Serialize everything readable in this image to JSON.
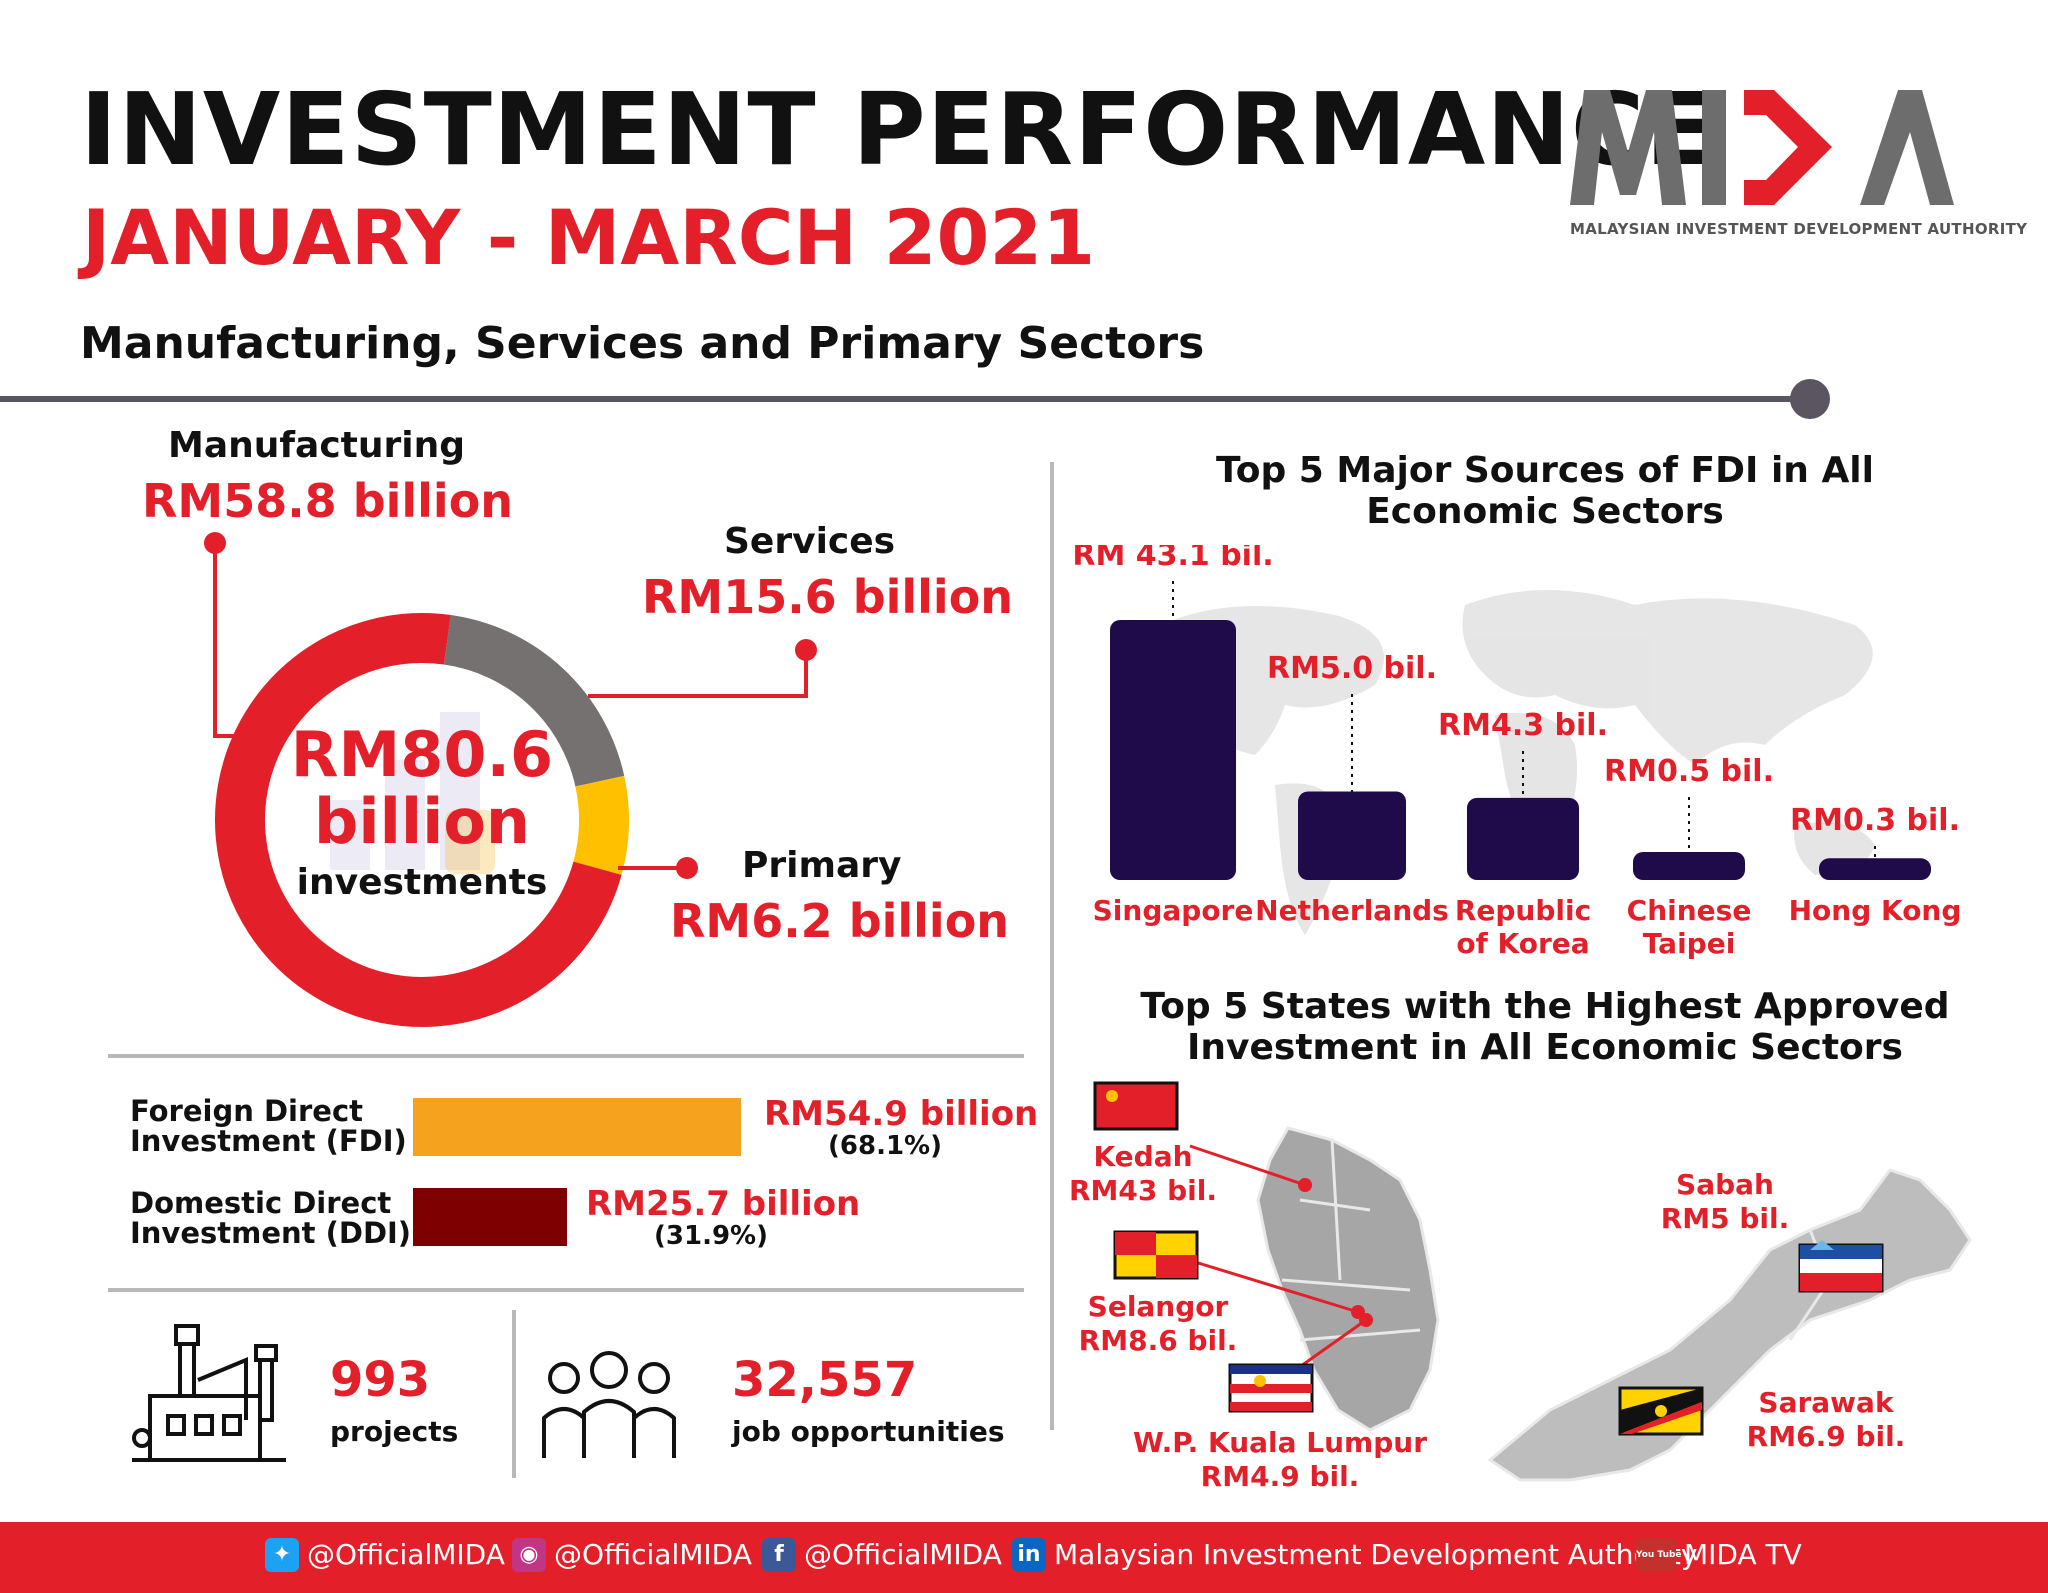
{
  "header": {
    "title": "INVESTMENT PERFORMANCE",
    "period": "JANUARY - MARCH 2021",
    "subtitle": "Manufacturing, Services and Primary Sectors"
  },
  "logo": {
    "subtitle": "MALAYSIAN INVESTMENT DEVELOPMENT AUTHORITY"
  },
  "colors": {
    "red": "#e3202a",
    "grey": "#767171",
    "yellow": "#ffc000",
    "navy": "#1f0a4a",
    "fdi_orange": "#f5a21e",
    "ddi_maroon": "#7f0000"
  },
  "total": {
    "value": "RM80.6 billion",
    "label": "investments"
  },
  "sectors": {
    "manufacturing": {
      "name": "Manufacturing",
      "value": "RM58.8 billion"
    },
    "services": {
      "name": "Services",
      "value": "RM15.6 billion"
    },
    "primary": {
      "name": "Primary",
      "value": "RM6.2 billion"
    }
  },
  "fdi_ddi": {
    "fdi": {
      "label_line1": "Foreign Direct",
      "label_line2": "Investment (FDI)",
      "value": "RM54.9 billion",
      "pct": "(68.1%)"
    },
    "ddi": {
      "label_line1": "Domestic Direct",
      "label_line2": "Investment (DDI)",
      "value": "RM25.7 billion",
      "pct": "(31.9%)"
    }
  },
  "stats": {
    "projects": {
      "value": "993",
      "label": "projects"
    },
    "jobs": {
      "value": "32,557",
      "label": "job opportunities"
    }
  },
  "fdi_sources": {
    "title_line1": "Top 5 Major Sources of FDI in All",
    "title_line2": "Economic Sectors",
    "labels": [
      "RM 43.1 bil.",
      "RM5.0 bil.",
      "RM4.3 bil.",
      "RM0.5 bil.",
      "RM0.3 bil."
    ],
    "categories": [
      "Singapore",
      "Netherlands",
      "Republic of Korea",
      "Chinese Taipei",
      "Hong Kong"
    ]
  },
  "states": {
    "title_line1": "Top 5 States with the Highest Approved",
    "title_line2": "Investment in All Economic Sectors",
    "items": [
      {
        "name": "Kedah",
        "value": "RM43 bil."
      },
      {
        "name": "Selangor",
        "value": "RM8.6 bil."
      },
      {
        "name": "W.P. Kuala Lumpur",
        "value": "RM4.9 bil."
      },
      {
        "name": "Sabah",
        "value": "RM5 bil."
      },
      {
        "name": "Sarawak",
        "value": "RM6.9 bil."
      }
    ]
  },
  "footer": {
    "twitter": "@OfficialMIDA",
    "instagram": "@OfficialMIDA",
    "facebook": "@OfficialMIDA",
    "linkedin": "Malaysian Investment Development Authority",
    "youtube": "MIDA TV",
    "youtube_icon_text": "You Tube"
  },
  "chart_data": [
    {
      "type": "pie",
      "categories": [
        "Manufacturing",
        "Services",
        "Primary"
      ],
      "values": [
        58.8,
        15.6,
        6.2
      ],
      "unit": "RM billion",
      "total": 80.6
    },
    {
      "type": "bar",
      "orientation": "horizontal",
      "categories": [
        "Foreign Direct Investment (FDI)",
        "Domestic Direct Investment (DDI)"
      ],
      "values": [
        54.9,
        25.7
      ],
      "percentages": [
        68.1,
        31.9
      ],
      "unit": "RM billion"
    },
    {
      "type": "bar",
      "categories": [
        "Singapore",
        "Netherlands",
        "Republic of Korea",
        "Chinese Taipei",
        "Hong Kong"
      ],
      "values": [
        43.1,
        5.0,
        4.3,
        0.5,
        0.3
      ],
      "unit": "RM billion"
    },
    {
      "type": "table",
      "categories": [
        "Kedah",
        "Selangor",
        "W.P. Kuala Lumpur",
        "Sabah",
        "Sarawak"
      ],
      "values": [
        43,
        8.6,
        4.9,
        5,
        6.9
      ],
      "unit": "RM billion"
    }
  ]
}
